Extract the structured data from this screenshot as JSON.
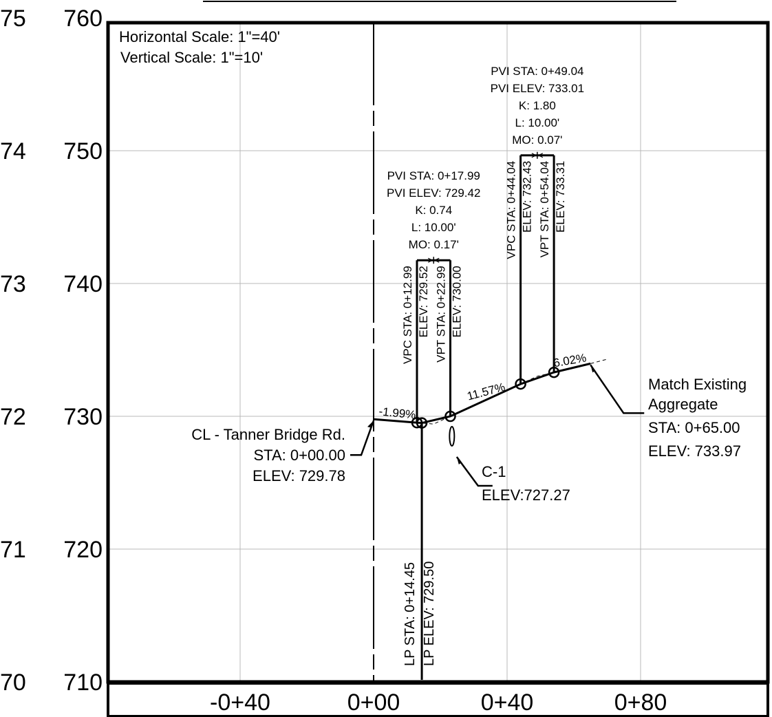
{
  "chart_data": {
    "type": "profile",
    "scale_notes": {
      "horizontal": "Horizontal Scale: 1\"=40'",
      "vertical": "Vertical Scale: 1\"=10'"
    },
    "x_ticks": [
      {
        "value": -40,
        "label": "-0+40"
      },
      {
        "value": 0,
        "label": "0+00"
      },
      {
        "value": 40,
        "label": "0+40"
      },
      {
        "value": 80,
        "label": "0+80"
      }
    ],
    "y_ticks": [
      {
        "value": 760,
        "label": "760"
      },
      {
        "value": 750,
        "label": "750"
      },
      {
        "value": 740,
        "label": "740"
      },
      {
        "value": 730,
        "label": "730"
      },
      {
        "value": 720,
        "label": "720"
      },
      {
        "value": 710,
        "label": "710"
      }
    ],
    "cropped_left_labels": [
      "75",
      "74",
      "73",
      "72",
      "71",
      "70"
    ],
    "xlim": [
      -80,
      115
    ],
    "ylim": [
      710,
      760
    ],
    "grid": true,
    "profile_points": [
      {
        "sta": 0,
        "elev": 729.78
      },
      {
        "sta": 12.99,
        "elev": 729.52
      },
      {
        "sta": 14.45,
        "elev": 729.5
      },
      {
        "sta": 17.99,
        "elev": 729.42
      },
      {
        "sta": 22.99,
        "elev": 730.0
      },
      {
        "sta": 44.04,
        "elev": 732.43
      },
      {
        "sta": 49.04,
        "elev": 733.01
      },
      {
        "sta": 54.04,
        "elev": 733.31
      },
      {
        "sta": 65.0,
        "elev": 733.97
      }
    ],
    "grades": [
      {
        "text": "-1.99%",
        "sta": 7,
        "elev": 729.64
      },
      {
        "text": "11.57%",
        "sta": 34,
        "elev": 731.27
      },
      {
        "text": "6.02%",
        "sta": 59,
        "elev": 733.61
      }
    ],
    "vertical_curves": [
      {
        "pvi_sta": "PVI STA: 0+17.99",
        "pvi_elev": "PVI ELEV: 729.42",
        "k": "K: 0.74",
        "l": "L: 10.00'",
        "mo": "MO: 0.17'",
        "vpc_sta": "VPC STA: 0+12.99",
        "vpc_elev": "ELEV: 729.52",
        "vpt_sta": "VPT STA: 0+22.99",
        "vpt_elev": "ELEV: 730.00",
        "vpc": {
          "sta": 12.99,
          "elev": 729.52
        },
        "vpt": {
          "sta": 22.99,
          "elev": 730.0
        },
        "pvi_station": 17.99,
        "bar_elev": 741.75
      },
      {
        "pvi_sta": "PVI STA: 0+49.04",
        "pvi_elev": "PVI ELEV: 733.01",
        "k": "K: 1.80",
        "l": "L: 10.00'",
        "mo": "MO: 0.07'",
        "vpc_sta": "VPC STA: 0+44.04",
        "vpc_elev": "ELEV: 732.43",
        "vpt_sta": "VPT STA: 0+54.04",
        "vpt_elev": "ELEV: 733.31",
        "vpc": {
          "sta": 44.04,
          "elev": 732.43
        },
        "vpt": {
          "sta": 54.04,
          "elev": 733.31
        },
        "pvi_station": 49.04,
        "bar_elev": 749.65
      }
    ],
    "low_point": {
      "sta_label": "LP STA: 0+14.45",
      "elev_label": "LP ELEV: 729.50",
      "sta": 14.45,
      "elev": 729.5
    },
    "callouts": {
      "start": {
        "lines": [
          "CL - Tanner Bridge Rd.",
          "STA: 0+00.00",
          "ELEV: 729.78"
        ],
        "sta": 0,
        "elev": 729.78
      },
      "end": {
        "lines": [
          "Match Existing",
          "Aggregate",
          "STA: 0+65.00",
          "ELEV: 733.97"
        ],
        "sta": 65,
        "elev": 733.97
      },
      "culvert": {
        "lines": [
          "C-1",
          "ELEV:727.27"
        ],
        "sta": 24.5,
        "elev": 728.6
      }
    }
  }
}
